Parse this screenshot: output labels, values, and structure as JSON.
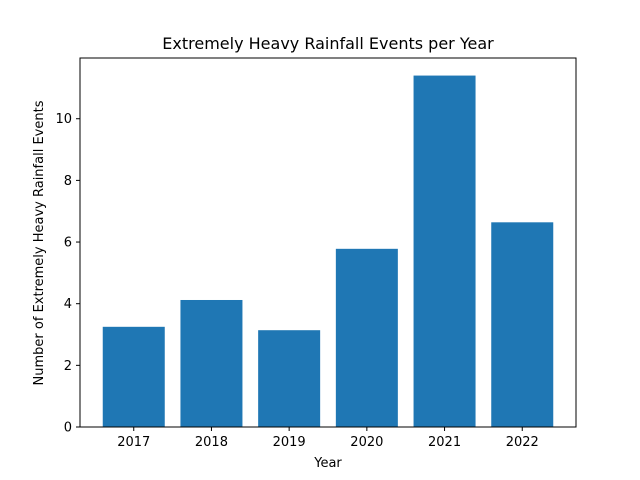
{
  "chart_data": {
    "type": "bar",
    "title": "Extremely Heavy Rainfall Events per Year",
    "xlabel": "Year",
    "ylabel": "Number of Extremely Heavy Rainfall Events",
    "categories": [
      "2017",
      "2018",
      "2019",
      "2020",
      "2021",
      "2022"
    ],
    "values": [
      3.25,
      4.12,
      3.14,
      5.78,
      11.4,
      6.64
    ],
    "ylim": [
      0,
      11.97
    ],
    "yticks": [
      0,
      2,
      4,
      6,
      8,
      10
    ],
    "grid": false,
    "bar_color": "#1f77b4"
  }
}
